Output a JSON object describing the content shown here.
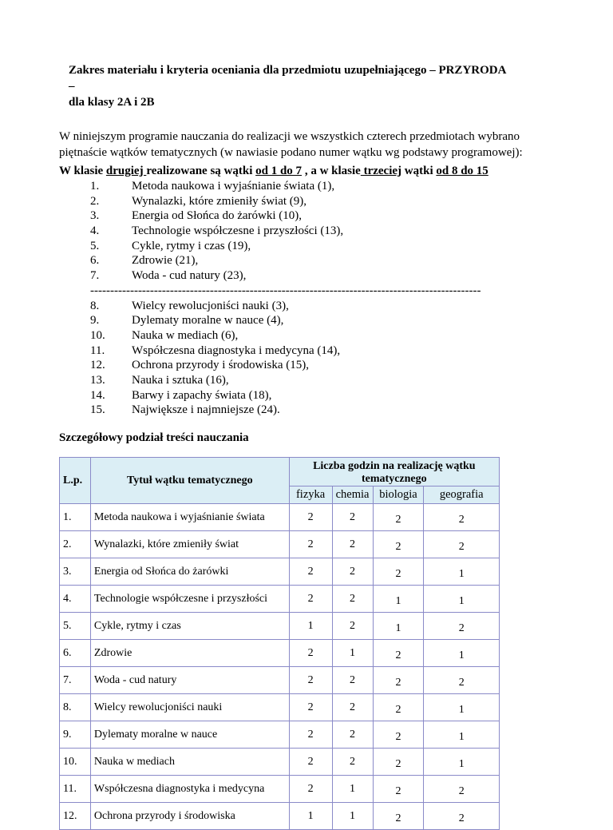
{
  "title": {
    "line1": "Zakres materiału  i kryteria oceniania dla przedmiotu uzupełniającego – PRZYRODA –",
    "line2": "dla klasy 2A i 2B"
  },
  "intro": {
    "line1": "W niniejszym programie nauczania do realizacji we wszystkich czterech przedmiotach wybrano",
    "line2": "piętnaście wątków tematycznych (w nawiasie podano numer wątku wg podstawy programowej):"
  },
  "classes": {
    "p1": "W klasie ",
    "p2": "drugiej ",
    "p3": "realizowane są wątki ",
    "p4": "od 1 do 7",
    "p5": " , a w klasie",
    "p6": " trzeciej",
    "p7": " wątki ",
    "p8": "od 8 do 15"
  },
  "topics": [
    {
      "num": "1.",
      "text": "Metoda naukowa i wyjaśnianie świata (1),"
    },
    {
      "num": "2.",
      "text": "Wynalazki, które zmieniły świat (9),"
    },
    {
      "num": "3.",
      "text": "Energia od Słońca do żarówki (10),"
    },
    {
      "num": "4.",
      "text": "Technologie współczesne i przyszłości (13),"
    },
    {
      "num": "5.",
      "text": "Cykle, rytmy i czas (19),"
    },
    {
      "num": "6.",
      "text": "Zdrowie (21),"
    },
    {
      "num": "7.",
      "text": "Woda - cud natury (23),"
    },
    {
      "num": "8.",
      "text": "Wielcy rewolucjoniści nauki (3),"
    },
    {
      "num": "9.",
      "text": "Dylematy moralne w nauce (4),"
    },
    {
      "num": "10.",
      "text": "Nauka w mediach (6),"
    },
    {
      "num": "11.",
      "text": "Współczesna diagnostyka i medycyna (14),"
    },
    {
      "num": "12.",
      "text": "Ochrona przyrody i środowiska (15),"
    },
    {
      "num": "13.",
      "text": "Nauka i sztuka (16),"
    },
    {
      "num": "14.",
      "text": "Barwy i zapachy świata (18),"
    },
    {
      "num": "15.",
      "text": "Największe i najmniejsze (24)."
    }
  ],
  "separator": "--------------------------------------------------------------------------------------------------",
  "section_heading": "Szczegółowy podział treści nauczania",
  "table": {
    "header_bg": "#dbeef5",
    "border_color": "#8a8ac8",
    "col_lp": "L.p.",
    "col_title": "Tytuł wątku tematycznego",
    "col_hours": "Liczba godzin na realizację wątku tematycznego",
    "subjects": [
      "fizyka",
      "chemia",
      "biologia",
      "geografia"
    ],
    "rows": [
      {
        "lp": "1.",
        "title": "Metoda naukowa i wyjaśnianie świata",
        "values": [
          "2",
          "2",
          "2",
          "2"
        ]
      },
      {
        "lp": "2.",
        "title": "Wynalazki, które zmieniły świat",
        "values": [
          "2",
          "2",
          "2",
          "2"
        ]
      },
      {
        "lp": "3.",
        "title": "Energia od Słońca do żarówki",
        "values": [
          "2",
          "2",
          "2",
          "1"
        ]
      },
      {
        "lp": "4.",
        "title": "Technologie współczesne i przyszłości",
        "values": [
          "2",
          "2",
          "1",
          "1"
        ]
      },
      {
        "lp": "5.",
        "title": "Cykle, rytmy i czas",
        "values": [
          "1",
          "2",
          "1",
          "2"
        ]
      },
      {
        "lp": "6.",
        "title": "Zdrowie",
        "values": [
          "2",
          "1",
          "2",
          "1"
        ]
      },
      {
        "lp": "7.",
        "title": "Woda - cud natury",
        "values": [
          "2",
          "2",
          "2",
          "2"
        ]
      },
      {
        "lp": "8.",
        "title": "Wielcy rewolucjoniści nauki",
        "values": [
          "2",
          "2",
          "2",
          "1"
        ]
      },
      {
        "lp": "9.",
        "title": "Dylematy moralne w nauce",
        "values": [
          "2",
          "2",
          "2",
          "1"
        ]
      },
      {
        "lp": "10.",
        "title": "Nauka w mediach",
        "values": [
          "2",
          "2",
          "2",
          "1"
        ]
      },
      {
        "lp": "11.",
        "title": "Współczesna diagnostyka i medycyna",
        "values": [
          "2",
          "1",
          "2",
          "2"
        ]
      },
      {
        "lp": "12.",
        "title": "Ochrona przyrody i środowiska",
        "values": [
          "1",
          "1",
          "2",
          "2"
        ]
      }
    ]
  }
}
